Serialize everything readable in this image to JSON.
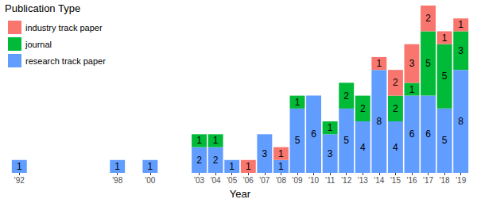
{
  "chart_data": {
    "type": "bar",
    "stacked": true,
    "data_labels": true,
    "grid": false,
    "tick_labels": "x",
    "legend": "top-left",
    "legend_title": "Publication Type",
    "xlabel": "Year",
    "categories": [
      "'92",
      null,
      null,
      null,
      null,
      null,
      "'98",
      null,
      "'00",
      null,
      null,
      "'03",
      "'04",
      "'05",
      "'06",
      "'07",
      "'08",
      "'09",
      "'10",
      "'11",
      "'12",
      "'13",
      "'14",
      "'15",
      "'16",
      "'17",
      "'18",
      "'19"
    ],
    "ylim": [
      0,
      13
    ],
    "series": [
      {
        "name": "research track paper",
        "color": "#619CFF",
        "values": [
          1,
          null,
          null,
          null,
          null,
          null,
          1,
          null,
          1,
          null,
          null,
          2,
          2,
          1,
          null,
          3,
          1,
          5,
          6,
          3,
          5,
          4,
          8,
          4,
          6,
          6,
          5,
          8
        ]
      },
      {
        "name": "journal",
        "color": "#00BA38",
        "values": [
          null,
          null,
          null,
          null,
          null,
          null,
          null,
          null,
          null,
          null,
          null,
          1,
          1,
          null,
          null,
          null,
          null,
          1,
          null,
          1,
          2,
          2,
          null,
          2,
          1,
          5,
          5,
          3
        ]
      },
      {
        "name": "industry track paper",
        "color": "#F8766D",
        "values": [
          null,
          null,
          null,
          null,
          null,
          null,
          null,
          null,
          null,
          null,
          null,
          null,
          null,
          null,
          1,
          null,
          1,
          null,
          null,
          null,
          null,
          null,
          1,
          2,
          3,
          2,
          1,
          1
        ]
      }
    ]
  }
}
